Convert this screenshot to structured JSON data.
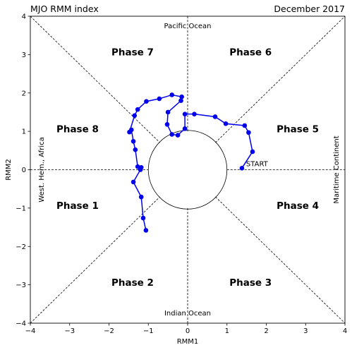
{
  "chart_data": {
    "type": "line",
    "title_left": "MJO RMM index",
    "title_right": "December 2017",
    "xlabel": "RMM1",
    "ylabel": "RMM2",
    "xlim": [
      -4,
      4
    ],
    "ylim": [
      -4,
      4
    ],
    "xticks": [
      "−4",
      "−3",
      "−2",
      "−1",
      "0",
      "1",
      "2",
      "3",
      "4"
    ],
    "yticks": [
      "−4",
      "−3",
      "−2",
      "−1",
      "0",
      "1",
      "2",
      "3",
      "4"
    ],
    "tick_values": [
      -4,
      -3,
      -2,
      -1,
      0,
      1,
      2,
      3,
      4
    ],
    "grid": false,
    "phases": [
      {
        "label": "Phase 1",
        "x": -2.8,
        "y": -0.93
      },
      {
        "label": "Phase 2",
        "x": -1.4,
        "y": -2.93
      },
      {
        "label": "Phase 3",
        "x": 1.6,
        "y": -2.93
      },
      {
        "label": "Phase 4",
        "x": 2.8,
        "y": -0.93
      },
      {
        "label": "Phase 5",
        "x": 2.8,
        "y": 1.07
      },
      {
        "label": "Phase 6",
        "x": 1.6,
        "y": 3.07
      },
      {
        "label": "Phase 7",
        "x": -1.4,
        "y": 3.07
      },
      {
        "label": "Phase 8",
        "x": -2.8,
        "y": 1.07
      }
    ],
    "regions": {
      "top": "Pacific Ocean",
      "bottom": "Indian Ocean",
      "left": "West. Hem., Africa",
      "right": "Maritime Continent"
    },
    "start_label": "START",
    "unit_circle_radius": 1,
    "series": [
      {
        "color": "#0000ee",
        "x": [
          1.38,
          1.65,
          1.55,
          1.45,
          0.97,
          0.7,
          0.17,
          -0.07,
          -0.07,
          -0.25,
          -0.4,
          -0.52,
          -0.5,
          -0.17,
          -0.15,
          -0.4,
          -0.72,
          -1.05,
          -1.27,
          -1.35,
          -1.48,
          -1.43,
          -1.38,
          -1.33,
          -1.27,
          -1.2,
          -1.18,
          -1.2,
          -1.38,
          -1.18,
          -1.13,
          -1.06
        ],
        "y": [
          0.04,
          0.47,
          0.97,
          1.15,
          1.2,
          1.38,
          1.45,
          1.45,
          1.07,
          0.9,
          0.92,
          1.18,
          1.5,
          1.8,
          1.9,
          1.95,
          1.85,
          1.78,
          1.57,
          1.41,
          0.98,
          1.04,
          0.74,
          0.52,
          0.08,
          0.03,
          0.06,
          0.0,
          -0.32,
          -0.71,
          -1.26,
          -1.58
        ]
      }
    ]
  }
}
